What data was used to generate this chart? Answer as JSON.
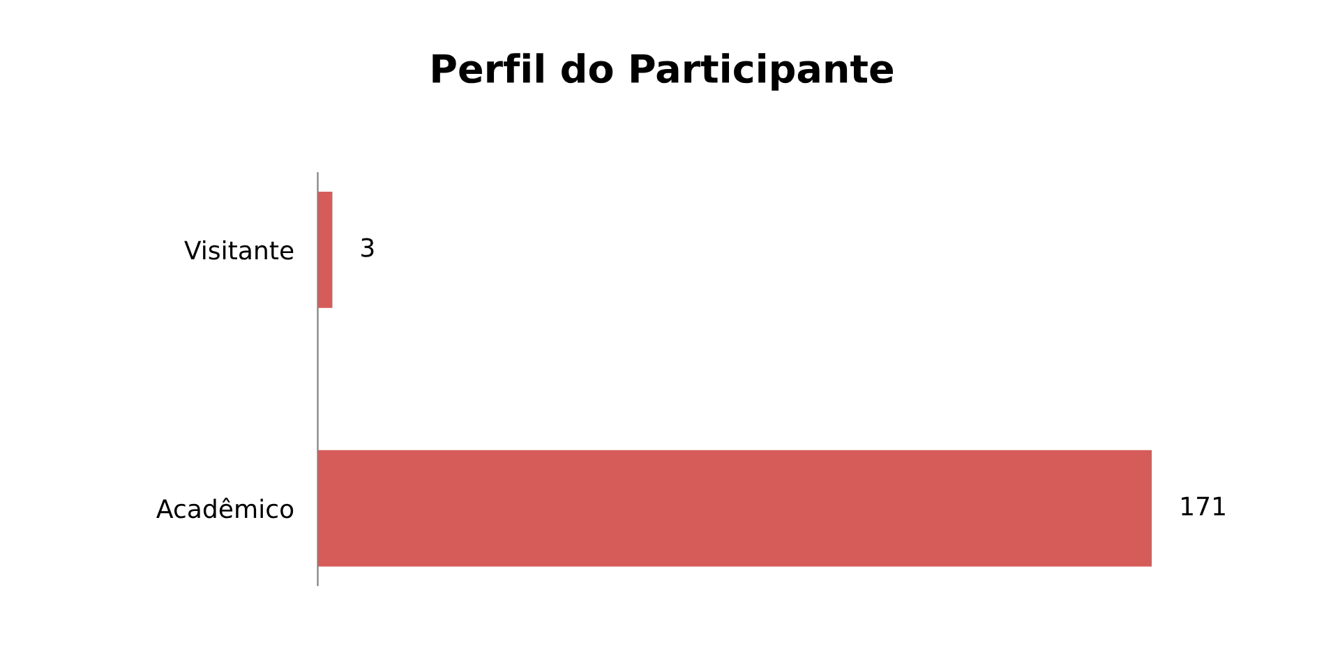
{
  "chart_data": {
    "type": "bar",
    "orientation": "horizontal",
    "title": "Perfil do Participante",
    "categories": [
      "Visitante",
      "Acadêmico"
    ],
    "values": [
      3,
      171
    ],
    "color": "#d65c5a",
    "data_labels": true,
    "grid": false,
    "legend": false
  }
}
